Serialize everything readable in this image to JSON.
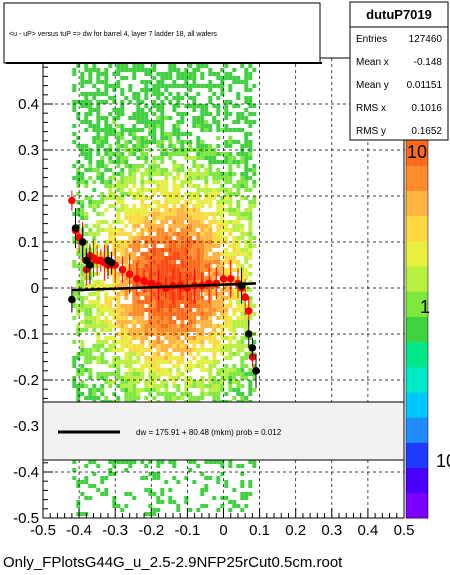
{
  "chart_data": {
    "type": "scatter",
    "title": "<u - uP>       versus  tuP =>  dw for barrel 4, layer 7 ladder 18, all wafers",
    "xlim": [
      -0.5,
      0.5
    ],
    "ylim": [
      -0.5,
      0.5
    ],
    "x_ticks": [
      "-0.5",
      "-0.4",
      "-0.3",
      "-0.2",
      "-0.1",
      "0",
      "0.1",
      "0.2",
      "0.3",
      "0.4",
      "0.5"
    ],
    "y_ticks": [
      "-0.5",
      "-0.4",
      "-0.3",
      "-0.2",
      "-0.1",
      "0",
      "0.1",
      "0.2",
      "0.3",
      "0.4"
    ],
    "grid": true,
    "colorbar_labels": [
      "10",
      "1",
      "10"
    ],
    "stats": {
      "name": "dutuP7019",
      "rows": [
        {
          "label": "Entries",
          "value": "127460"
        },
        {
          "label": "Mean x",
          "value": "-0.148"
        },
        {
          "label": "Mean y",
          "value": "0.01151"
        },
        {
          "label": "RMS x",
          "value": "0.1016"
        },
        {
          "label": "RMS y",
          "value": "0.1652"
        }
      ]
    },
    "fit_legend": "dw =  175.91 + 80.48 (mkm) prob = 0.012",
    "series": [
      {
        "marker": "red-circle",
        "color": "#ff0000",
        "points": [
          [
            -0.42,
            0.19
          ],
          [
            -0.41,
            0.125
          ],
          [
            -0.4,
            0.11
          ],
          [
            -0.39,
            0.1
          ],
          [
            -0.38,
            0.04
          ],
          [
            -0.37,
            0.07
          ],
          [
            -0.36,
            0.065
          ],
          [
            -0.35,
            0.06
          ],
          [
            -0.34,
            0.06
          ],
          [
            -0.33,
            0.055
          ],
          [
            -0.32,
            0.05
          ],
          [
            -0.31,
            0.05
          ],
          [
            -0.3,
            0.05
          ],
          [
            -0.28,
            0.04
          ],
          [
            -0.26,
            0.03
          ],
          [
            -0.24,
            0.02
          ],
          [
            -0.22,
            0.015
          ],
          [
            -0.2,
            0.01
          ],
          [
            -0.18,
            0.005
          ],
          [
            -0.16,
            0.0
          ],
          [
            -0.14,
            0.005
          ],
          [
            -0.12,
            0.005
          ],
          [
            -0.1,
            0.0
          ],
          [
            -0.08,
            0.005
          ],
          [
            -0.06,
            0.005
          ],
          [
            -0.04,
            0.01
          ],
          [
            -0.02,
            0.01
          ],
          [
            0.0,
            0.02
          ],
          [
            0.02,
            0.02
          ],
          [
            0.04,
            0.01
          ],
          [
            0.05,
            0.0
          ],
          [
            0.06,
            -0.02
          ],
          [
            0.07,
            -0.05
          ],
          [
            0.08,
            -0.15
          ]
        ]
      },
      {
        "marker": "black-circle",
        "color": "#000000",
        "points": [
          [
            -0.42,
            -0.025
          ],
          [
            -0.41,
            0.13
          ],
          [
            -0.39,
            0.1
          ],
          [
            -0.38,
            0.06
          ],
          [
            -0.37,
            0.05
          ],
          [
            -0.32,
            0.06
          ],
          [
            -0.31,
            0.055
          ],
          [
            0.05,
            0.005
          ],
          [
            0.07,
            -0.1
          ],
          [
            0.08,
            -0.13
          ],
          [
            0.09,
            -0.18
          ]
        ]
      }
    ],
    "fit_line": {
      "x": [
        -0.42,
        0.09
      ],
      "y": [
        -0.005,
        0.01
      ]
    }
  },
  "footer": "Only_FPlotsG44G_u_2.5-2.9NFP25rCut0.5cm.root"
}
